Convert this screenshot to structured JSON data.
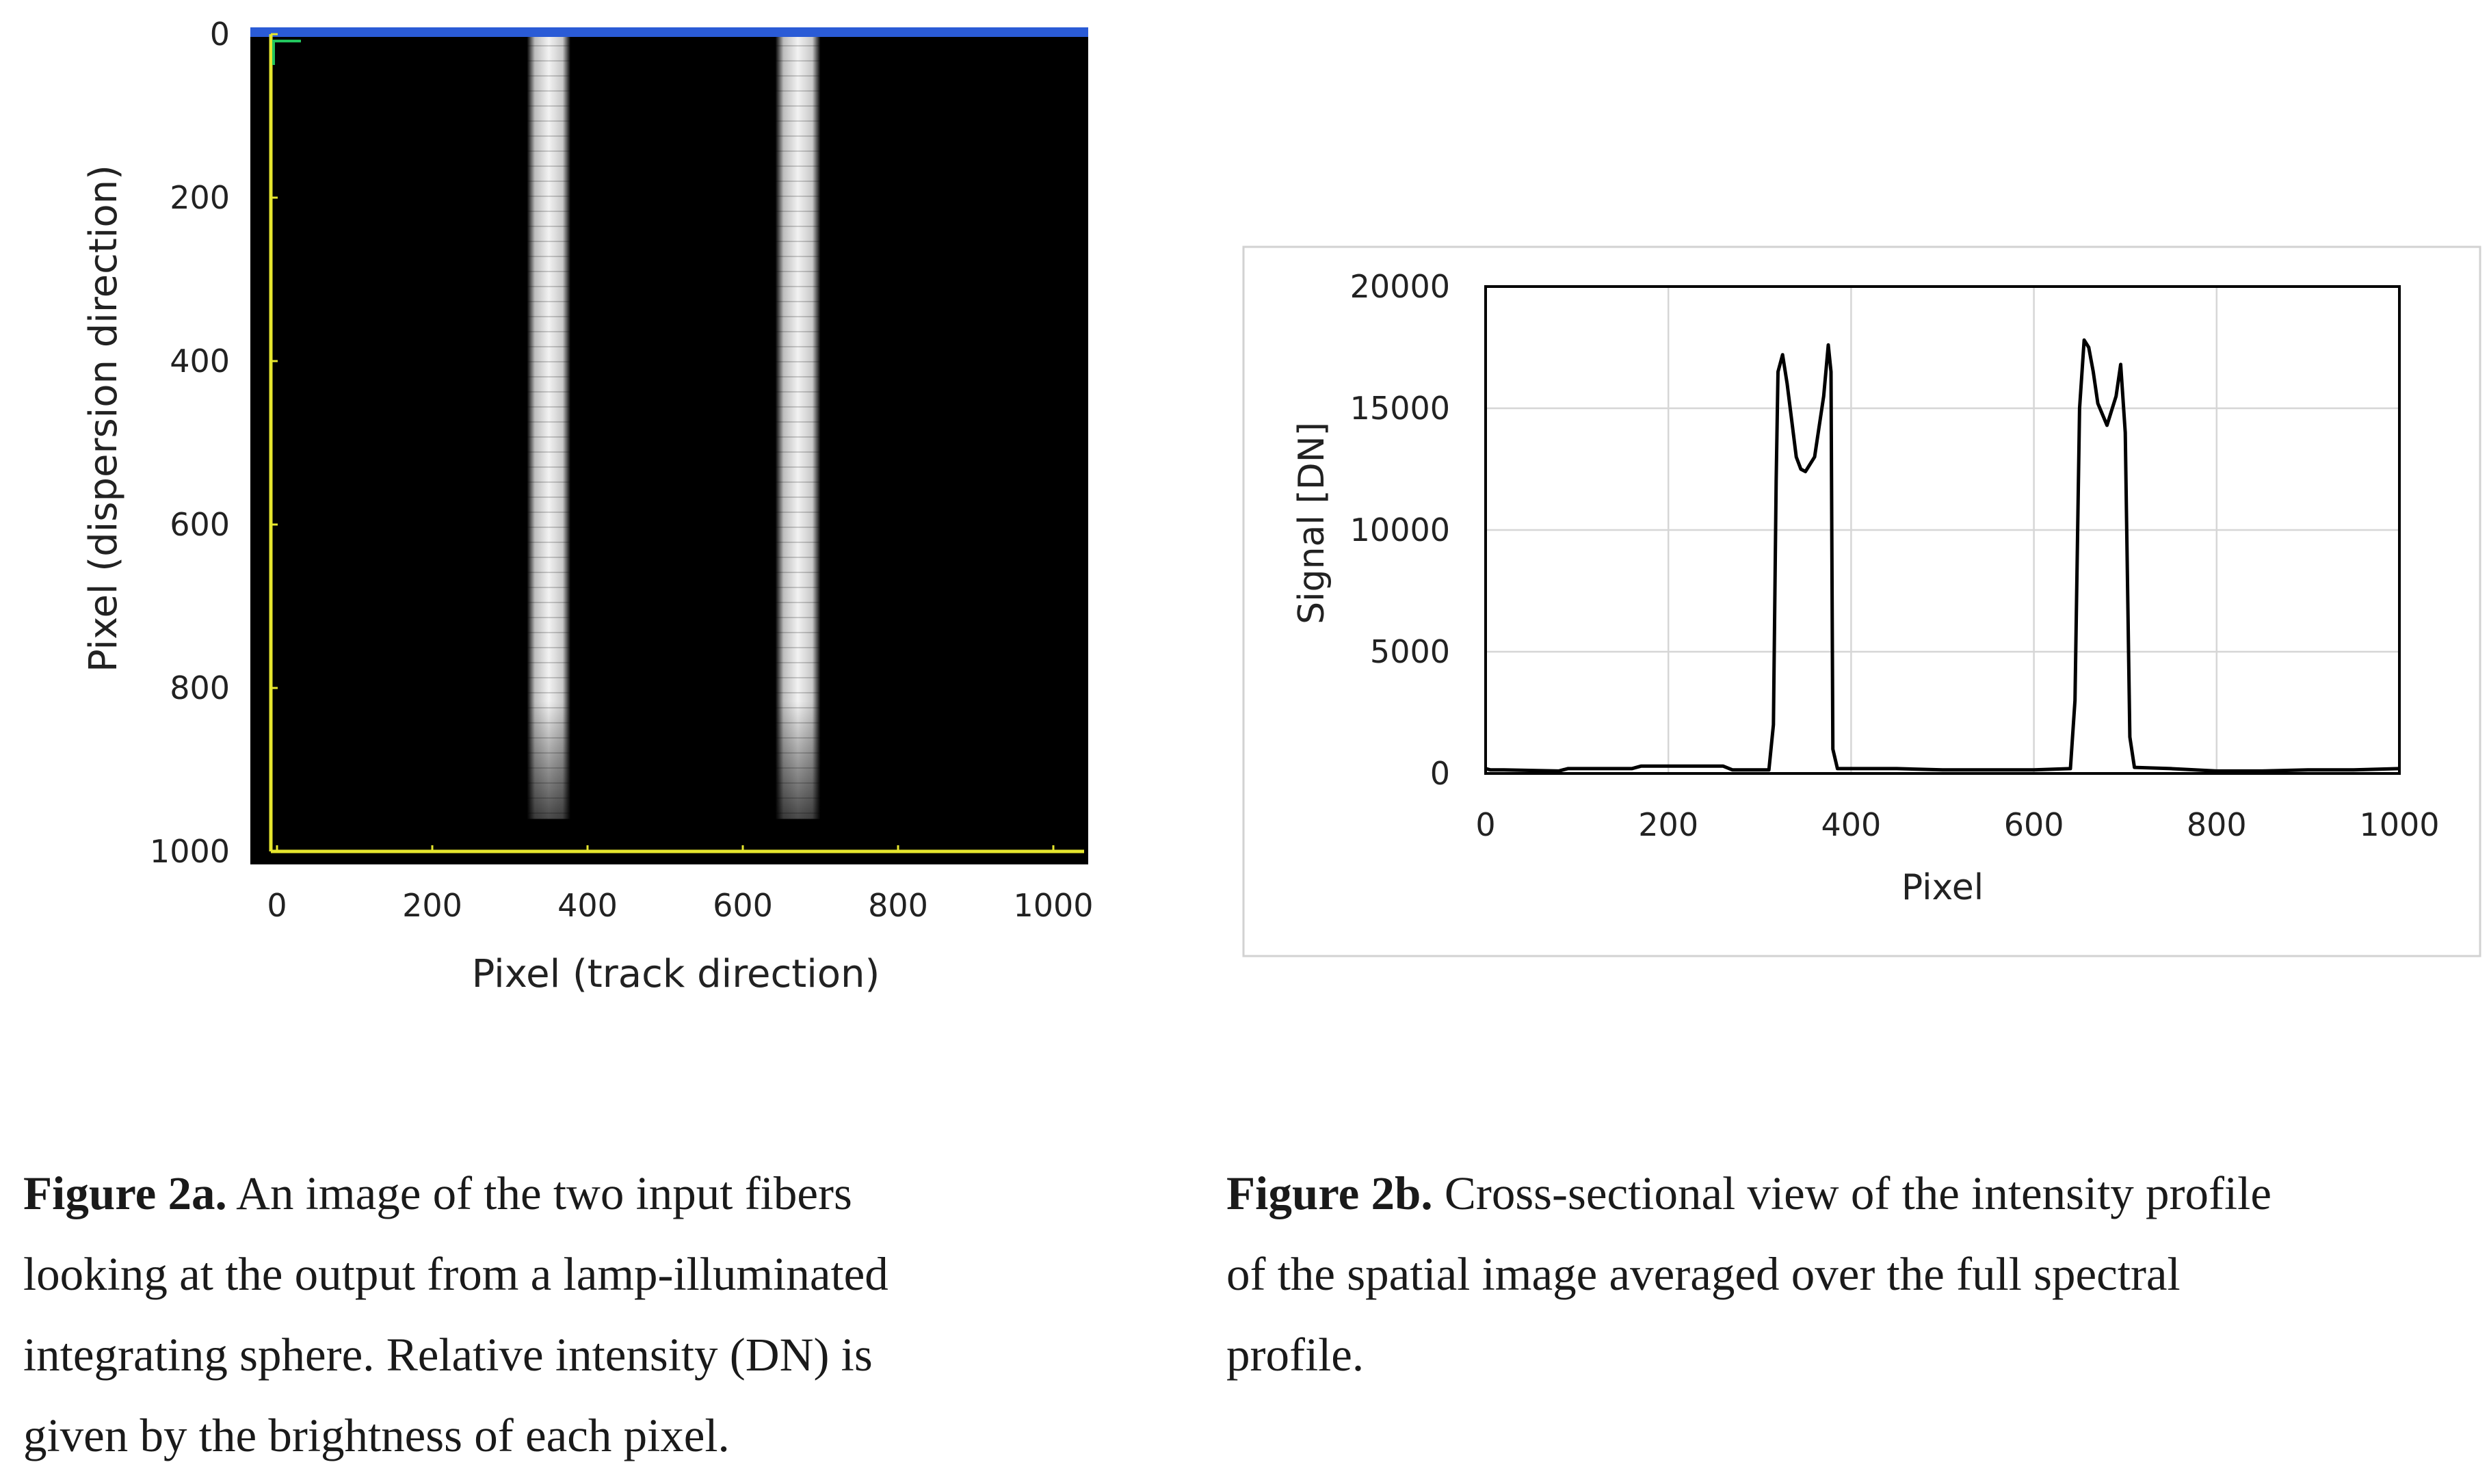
{
  "figure_a": {
    "ylabel": "Pixel (dispersion direction)",
    "xlabel": "Pixel (track direction)",
    "x_ticks": [
      "0",
      "200",
      "400",
      "600",
      "800",
      "1000"
    ],
    "y_ticks": [
      "0",
      "200",
      "400",
      "600",
      "800",
      "1000"
    ],
    "colors": {
      "background": "#000000",
      "fiber": "#e8e8e8",
      "top_bar": "#2a5bd6",
      "axis_lines": "#e6e62e",
      "corner_marker": "#22c55e"
    }
  },
  "figure_b": {
    "ylabel": "Signal [DN]",
    "xlabel": "Pixel",
    "x_ticks": [
      "0",
      "200",
      "400",
      "600",
      "800",
      "1000"
    ],
    "y_ticks": [
      "0",
      "5000",
      "10000",
      "15000",
      "20000"
    ]
  },
  "chart_data": [
    {
      "type": "heatmap",
      "xlabel": "Pixel (track direction)",
      "ylabel": "Pixel (dispersion direction)",
      "xlim": [
        0,
        1000
      ],
      "ylim": [
        1000,
        0
      ],
      "grid": false,
      "bright_bands": [
        {
          "x_start": 322,
          "x_end": 378,
          "y_start": 0,
          "y_end": 960
        },
        {
          "x_start": 642,
          "x_end": 700,
          "y_start": 0,
          "y_end": 960
        }
      ]
    },
    {
      "type": "line",
      "xlabel": "Pixel",
      "ylabel": "Signal [DN]",
      "xlim": [
        0,
        1000
      ],
      "ylim": [
        0,
        20000
      ],
      "grid": true,
      "legend": "none",
      "series": [
        {
          "x": [
            0,
            5,
            20,
            80,
            90,
            160,
            170,
            200,
            260,
            270,
            310,
            315,
            318,
            320,
            325,
            330,
            340,
            345,
            350,
            360,
            370,
            375,
            378,
            380,
            385,
            400,
            450,
            500,
            550,
            560,
            600,
            640,
            645,
            650,
            655,
            660,
            665,
            670,
            680,
            690,
            695,
            700,
            705,
            710,
            750,
            800,
            850,
            900,
            950,
            1000
          ],
          "y": [
            200,
            150,
            150,
            100,
            200,
            200,
            300,
            300,
            300,
            150,
            150,
            2000,
            12000,
            16500,
            17200,
            16000,
            13000,
            12500,
            12400,
            13000,
            15500,
            17600,
            16500,
            1000,
            200,
            200,
            200,
            150,
            150,
            150,
            150,
            200,
            3000,
            15000,
            17800,
            17500,
            16500,
            15200,
            14300,
            15500,
            16800,
            14000,
            1500,
            250,
            200,
            100,
            100,
            150,
            150,
            200
          ]
        }
      ]
    }
  ],
  "captions": {
    "a_label": "Figure 2a.",
    "a_line1": "An image of the two input fibers",
    "a_line2": "looking at the output from a lamp-illuminated",
    "a_line3": "integrating sphere. Relative intensity (DN) is",
    "a_line4": "given by the brightness of each pixel.",
    "b_label": "Figure 2b.",
    "b_line1": "Cross-sectional view of the intensity profile",
    "b_line2": "of the spatial image averaged over the full spectral",
    "b_line3": "profile."
  }
}
